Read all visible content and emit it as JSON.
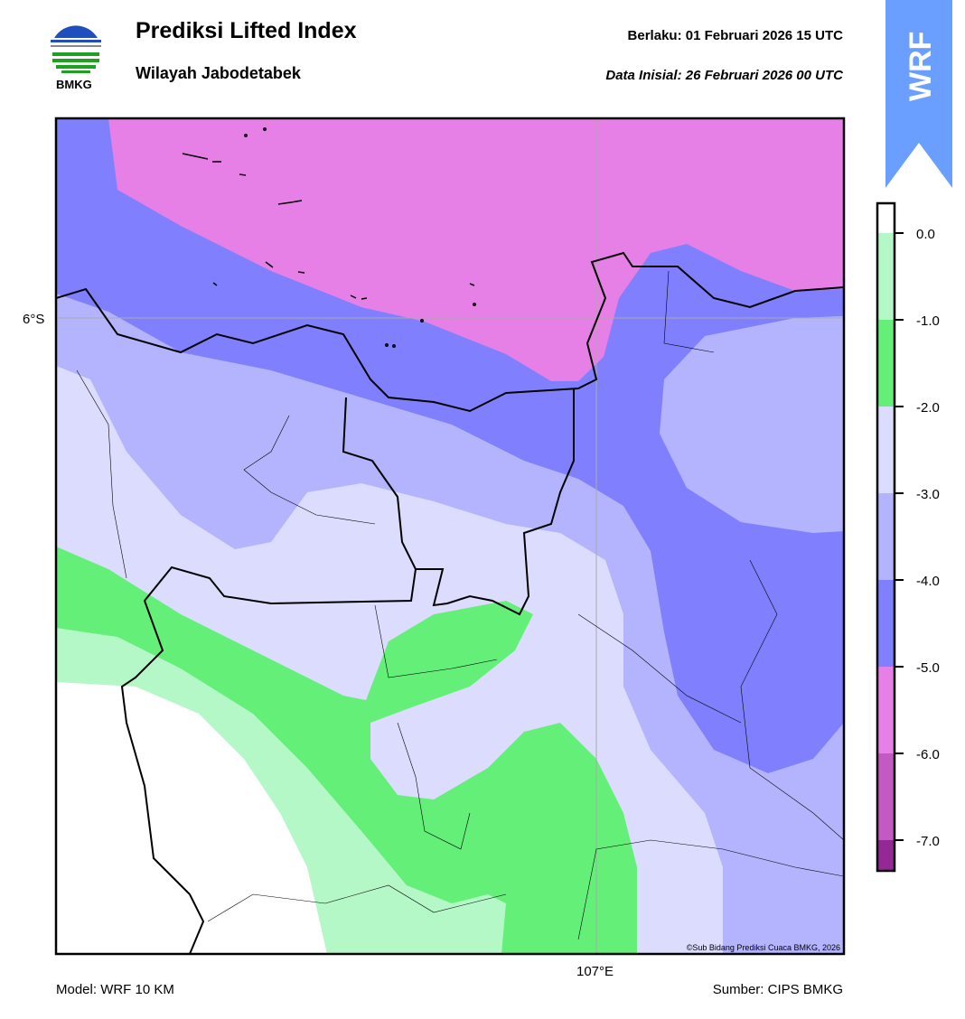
{
  "header": {
    "title": "Prediksi Lifted Index",
    "subtitle": "Wilayah Jabodetabek",
    "valid_label": "Berlaku:  01 Februari 2026 15 UTC",
    "init_label": "Data Inisial:  26 Februari 2026 00 UTC",
    "logo_text": "BMKG",
    "model_badge": "WRF"
  },
  "map": {
    "lat_label": "6°S",
    "lon_label": "107°E",
    "copyright": "©Sub Bidang Prediksi Cuaca BMKG, 2026"
  },
  "colorbar": {
    "ticks": [
      "0.0",
      "-1.0",
      "-2.0",
      "-3.0",
      "-4.0",
      "-5.0",
      "-6.0",
      "-7.0"
    ],
    "colors": [
      "#ffffff",
      "#b4f8c8",
      "#64f078",
      "#dcdcfe",
      "#b4b4fe",
      "#8080fe",
      "#e680e6",
      "#c35ac3",
      "#962896"
    ]
  },
  "footer": {
    "model": "Model: WRF 10 KM",
    "source": "Sumber: CIPS BMKG"
  }
}
